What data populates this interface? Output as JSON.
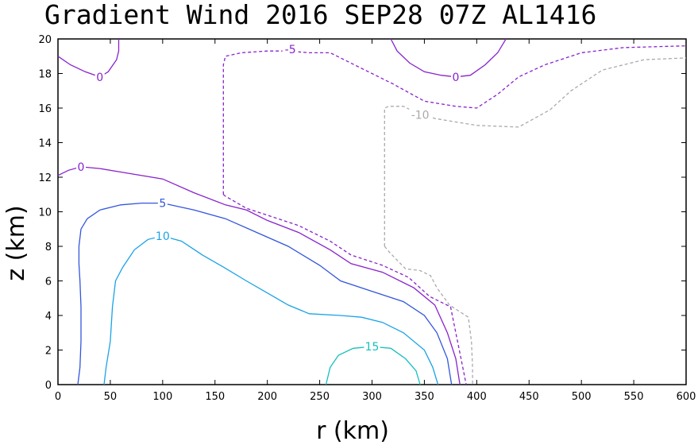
{
  "chart_data": {
    "type": "contour",
    "title": "Gradient Wind 2016 SEP28 07Z  AL1416",
    "xlabel": "r (km)",
    "ylabel": "z (km)",
    "xlim": [
      0,
      600
    ],
    "ylim": [
      0,
      20
    ],
    "xticks": [
      0,
      50,
      100,
      150,
      200,
      250,
      300,
      350,
      400,
      450,
      500,
      550,
      600
    ],
    "yticks": [
      0,
      2,
      4,
      6,
      8,
      10,
      12,
      14,
      16,
      18,
      20
    ],
    "grid": false,
    "legend": "none",
    "contours": [
      {
        "value": 15,
        "label": "15",
        "color": "#17bfbf",
        "style": "solid",
        "points": [
          [
            256,
            0
          ],
          [
            260,
            1
          ],
          [
            268,
            1.7
          ],
          [
            282,
            2.1
          ],
          [
            300,
            2.2
          ],
          [
            318,
            2.1
          ],
          [
            332,
            1.5
          ],
          [
            342,
            0.8
          ],
          [
            346,
            0
          ]
        ],
        "labels": [
          [
            300,
            2.2
          ]
        ]
      },
      {
        "value": 10,
        "label": "10",
        "color": "#1aa3e6",
        "style": "solid",
        "points": [
          [
            44,
            0
          ],
          [
            46,
            1
          ],
          [
            50,
            2.5
          ],
          [
            52,
            4.5
          ],
          [
            55,
            6
          ],
          [
            62,
            6.8
          ],
          [
            73,
            7.8
          ],
          [
            86,
            8.4
          ],
          [
            100,
            8.6
          ],
          [
            118,
            8.3
          ],
          [
            138,
            7.5
          ],
          [
            158,
            6.8
          ],
          [
            180,
            6
          ],
          [
            200,
            5.3
          ],
          [
            220,
            4.6
          ],
          [
            240,
            4.1
          ],
          [
            270,
            4
          ],
          [
            290,
            3.9
          ],
          [
            310,
            3.6
          ],
          [
            330,
            3
          ],
          [
            350,
            2
          ],
          [
            358,
            1
          ],
          [
            363,
            0
          ]
        ],
        "labels": [
          [
            100,
            8.6
          ]
        ]
      },
      {
        "value": 5,
        "label": "5",
        "color": "#3355dd",
        "style": "solid",
        "points": [
          [
            19,
            0
          ],
          [
            21,
            1
          ],
          [
            22,
            2.5
          ],
          [
            22,
            4.5
          ],
          [
            21,
            6
          ],
          [
            20,
            7
          ],
          [
            20,
            8
          ],
          [
            22,
            9
          ],
          [
            28,
            9.6
          ],
          [
            40,
            10.1
          ],
          [
            60,
            10.4
          ],
          [
            80,
            10.5
          ],
          [
            100,
            10.5
          ],
          [
            130,
            10.1
          ],
          [
            160,
            9.6
          ],
          [
            190,
            8.8
          ],
          [
            220,
            8
          ],
          [
            250,
            6.9
          ],
          [
            270,
            6
          ],
          [
            300,
            5.4
          ],
          [
            330,
            4.8
          ],
          [
            350,
            4
          ],
          [
            362,
            3
          ],
          [
            372,
            1.5
          ],
          [
            376,
            0
          ]
        ],
        "labels": [
          [
            100,
            10.5
          ]
        ]
      },
      {
        "value": 0,
        "label": "0",
        "color": "#8822cc",
        "style": "solid",
        "points": [
          [
            0,
            12.1
          ],
          [
            10,
            12.4
          ],
          [
            22,
            12.6
          ],
          [
            40,
            12.5
          ],
          [
            60,
            12.3
          ],
          [
            100,
            11.9
          ],
          [
            130,
            11.1
          ],
          [
            160,
            10.4
          ],
          [
            180,
            10.1
          ],
          [
            200,
            9.5
          ],
          [
            230,
            8.8
          ],
          [
            260,
            7.8
          ],
          [
            280,
            7
          ],
          [
            310,
            6.5
          ],
          [
            340,
            5.6
          ],
          [
            360,
            4.6
          ],
          [
            372,
            3
          ],
          [
            380,
            1.5
          ],
          [
            384,
            0
          ]
        ],
        "labels": [
          [
            22,
            12.6
          ]
        ]
      },
      {
        "value": 0,
        "label": "0",
        "color": "#8822cc",
        "style": "solid",
        "points": [
          [
            0,
            19
          ],
          [
            12,
            18.5
          ],
          [
            26,
            18.1
          ],
          [
            40,
            17.8
          ],
          [
            48,
            18.1
          ],
          [
            56,
            18.8
          ],
          [
            58,
            19.3
          ],
          [
            58,
            20
          ]
        ],
        "labels": [
          [
            40,
            17.8
          ]
        ]
      },
      {
        "value": 0,
        "label": "0",
        "color": "#8822cc",
        "style": "solid",
        "points": [
          [
            318,
            20
          ],
          [
            324,
            19.3
          ],
          [
            336,
            18.6
          ],
          [
            350,
            18.1
          ],
          [
            366,
            17.9
          ],
          [
            380,
            17.8
          ],
          [
            394,
            17.9
          ],
          [
            408,
            18.5
          ],
          [
            420,
            19.2
          ],
          [
            428,
            20
          ]
        ],
        "labels": [
          [
            380,
            17.8
          ]
        ]
      },
      {
        "value": -5,
        "label": "-5",
        "color": "#8822cc",
        "style": "dashed",
        "points": [
          [
            158,
            11
          ],
          [
            158,
            13
          ],
          [
            158,
            16
          ],
          [
            158,
            18.5
          ],
          [
            160,
            19
          ],
          [
            175,
            19.2
          ],
          [
            200,
            19.3
          ],
          [
            220,
            19.3
          ],
          [
            240,
            19.2
          ],
          [
            260,
            19.2
          ],
          [
            290,
            18.3
          ],
          [
            320,
            17.4
          ],
          [
            350,
            16.4
          ],
          [
            380,
            16.1
          ],
          [
            400,
            16
          ],
          [
            420,
            16.8
          ],
          [
            440,
            17.8
          ],
          [
            465,
            18.5
          ],
          [
            500,
            19.2
          ],
          [
            540,
            19.5
          ],
          [
            600,
            19.6
          ]
        ],
        "path2": [
          [
            158,
            11
          ],
          [
            160,
            10.9
          ],
          [
            180,
            10.2
          ],
          [
            200,
            9.8
          ],
          [
            230,
            9.2
          ],
          [
            260,
            8.3
          ],
          [
            280,
            7.5
          ],
          [
            310,
            6.9
          ],
          [
            335,
            6.2
          ],
          [
            355,
            5.1
          ],
          [
            375,
            4.5
          ],
          [
            380,
            3
          ],
          [
            385,
            1.5
          ],
          [
            390,
            0
          ]
        ],
        "labels": [
          [
            222,
            19.4
          ]
        ]
      },
      {
        "value": -10,
        "label": "-10",
        "color": "#aaaaaa",
        "style": "dashed",
        "points": [
          [
            312,
            8
          ],
          [
            312,
            10
          ],
          [
            312,
            12
          ],
          [
            312,
            14
          ],
          [
            312,
            16
          ],
          [
            316,
            16.1
          ],
          [
            330,
            16.1
          ],
          [
            340,
            15.8
          ],
          [
            360,
            15.4
          ],
          [
            400,
            15
          ],
          [
            440,
            14.9
          ],
          [
            470,
            15.9
          ],
          [
            490,
            17
          ],
          [
            520,
            18.2
          ],
          [
            560,
            18.8
          ],
          [
            600,
            18.9
          ]
        ],
        "path2": [
          [
            312,
            8
          ],
          [
            316,
            7.7
          ],
          [
            324,
            7.2
          ],
          [
            332,
            6.7
          ],
          [
            346,
            6.6
          ],
          [
            356,
            6.3
          ],
          [
            362,
            5.6
          ],
          [
            374,
            4.6
          ],
          [
            392,
            3.9
          ],
          [
            395,
            2.5
          ],
          [
            396,
            1
          ],
          [
            396,
            0
          ]
        ],
        "labels": [
          [
            346,
            15.6
          ]
        ]
      }
    ]
  }
}
